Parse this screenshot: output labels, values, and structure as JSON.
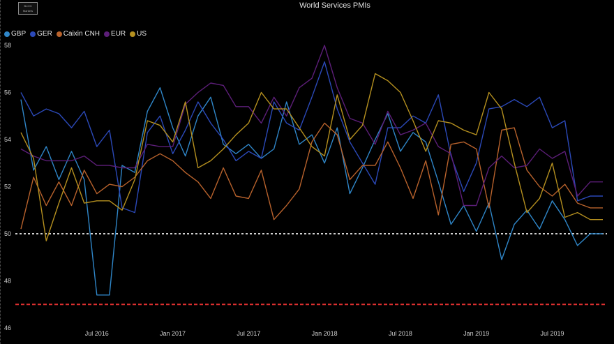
{
  "header": {
    "title": "World Services PMIs"
  },
  "logo": {
    "line1": "BLOG",
    "line2": "Markets"
  },
  "colors": {
    "background": "#000000",
    "ref50": "#d0d0d0",
    "ref47": "#e03030"
  },
  "legend": [
    {
      "label": "GBP",
      "color": "#2f86c8"
    },
    {
      "label": "GER",
      "color": "#2b49b8"
    },
    {
      "label": "Caixin CNH",
      "color": "#b8622c"
    },
    {
      "label": "EUR",
      "color": "#5c1e78"
    },
    {
      "label": "US",
      "color": "#b5901f"
    }
  ],
  "chart_data": {
    "type": "line",
    "title": "World Services PMIs",
    "xlabel": "",
    "ylabel": "",
    "ylim": [
      46,
      58.8
    ],
    "yticks": [
      46,
      48,
      50,
      52,
      54,
      56,
      58
    ],
    "x": [
      "2016-01",
      "2016-02",
      "2016-03",
      "2016-04",
      "2016-05",
      "2016-06",
      "2016-07",
      "2016-08",
      "2016-09",
      "2016-10",
      "2016-11",
      "2016-12",
      "2017-01",
      "2017-02",
      "2017-03",
      "2017-04",
      "2017-05",
      "2017-06",
      "2017-07",
      "2017-08",
      "2017-09",
      "2017-10",
      "2017-11",
      "2017-12",
      "2018-01",
      "2018-02",
      "2018-03",
      "2018-04",
      "2018-05",
      "2018-06",
      "2018-07",
      "2018-08",
      "2018-09",
      "2018-10",
      "2018-11",
      "2018-12",
      "2019-01",
      "2019-02",
      "2019-03",
      "2019-04",
      "2019-05",
      "2019-06",
      "2019-07",
      "2019-08",
      "2019-09",
      "2019-10",
      "2019-11"
    ],
    "xticks": [
      {
        "label": "Jul 2016",
        "at": "2016-07"
      },
      {
        "label": "Jan 2017",
        "at": "2017-01"
      },
      {
        "label": "Jul 2017",
        "at": "2017-07"
      },
      {
        "label": "Jan 2018",
        "at": "2018-01"
      },
      {
        "label": "Jul 2018",
        "at": "2018-07"
      },
      {
        "label": "Jan 2019",
        "at": "2019-01"
      },
      {
        "label": "Jul 2019",
        "at": "2019-07"
      }
    ],
    "reference_lines": [
      {
        "y": 50,
        "style": "dotted",
        "color": "#d0d0d0"
      },
      {
        "y": 47,
        "style": "dashed",
        "color": "#e03030"
      }
    ],
    "series": [
      {
        "name": "GBP",
        "color": "#2f86c8",
        "values": [
          55.7,
          52.7,
          53.7,
          52.3,
          53.5,
          52.3,
          47.4,
          47.4,
          52.9,
          52.6,
          55.2,
          56.2,
          54.5,
          53.3,
          55.0,
          55.8,
          53.8,
          53.4,
          53.8,
          53.2,
          53.6,
          55.6,
          53.8,
          54.2,
          53.0,
          54.5,
          51.7,
          52.8,
          54.0,
          55.1,
          53.5,
          54.3,
          53.9,
          52.2,
          50.4,
          51.2,
          50.1,
          51.3,
          48.9,
          50.4,
          51.0,
          50.2,
          51.4,
          50.6,
          49.5,
          50.0,
          50.0
        ]
      },
      {
        "name": "GER",
        "color": "#2b49b8",
        "values": [
          56.0,
          55.0,
          55.3,
          55.1,
          54.5,
          55.2,
          53.7,
          54.4,
          51.1,
          50.9,
          54.3,
          55.0,
          53.4,
          54.4,
          55.6,
          54.7,
          54.0,
          53.1,
          53.5,
          53.2,
          55.6,
          54.7,
          54.4,
          55.8,
          57.3,
          55.3,
          53.9,
          53.0,
          52.1,
          54.5,
          54.5,
          55.0,
          54.7,
          55.9,
          53.3,
          51.8,
          53.0,
          55.3,
          55.4,
          55.7,
          55.4,
          55.8,
          54.5,
          54.8,
          51.4,
          51.6,
          51.6
        ]
      },
      {
        "name": "Caixin CNH",
        "color": "#b8622c",
        "values": [
          50.2,
          52.4,
          51.2,
          52.2,
          51.2,
          52.7,
          51.7,
          52.1,
          52.0,
          52.4,
          53.1,
          53.4,
          53.1,
          52.6,
          52.2,
          51.5,
          52.8,
          51.6,
          51.5,
          52.7,
          50.6,
          51.2,
          51.9,
          53.9,
          54.7,
          54.2,
          52.3,
          52.9,
          52.9,
          53.9,
          52.8,
          51.5,
          53.1,
          50.8,
          53.8,
          53.9,
          53.6,
          51.1,
          54.4,
          54.5,
          52.7,
          52.0,
          51.6,
          52.1,
          51.3,
          51.1,
          51.1
        ]
      },
      {
        "name": "EUR",
        "color": "#5c1e78",
        "values": [
          53.6,
          53.3,
          53.1,
          53.1,
          53.1,
          53.3,
          52.9,
          52.9,
          52.8,
          52.8,
          53.8,
          53.7,
          53.7,
          55.5,
          56.0,
          56.4,
          56.3,
          55.4,
          55.4,
          54.7,
          55.8,
          55.0,
          56.2,
          56.6,
          58.0,
          56.2,
          54.9,
          54.7,
          53.8,
          55.2,
          54.2,
          54.4,
          54.7,
          53.7,
          53.4,
          51.2,
          51.2,
          52.8,
          53.3,
          52.8,
          52.9,
          53.6,
          53.2,
          53.5,
          51.6,
          52.2,
          52.2
        ]
      },
      {
        "name": "US",
        "color": "#b5901f",
        "values": [
          54.3,
          53.2,
          49.7,
          51.3,
          52.8,
          51.3,
          51.4,
          51.4,
          51.0,
          52.3,
          54.8,
          54.6,
          53.9,
          55.6,
          52.8,
          53.1,
          53.6,
          54.2,
          54.7,
          56.0,
          55.3,
          55.3,
          54.5,
          53.7,
          53.3,
          55.9,
          54.0,
          54.6,
          56.8,
          56.5,
          56.0,
          54.8,
          53.5,
          54.8,
          54.7,
          54.4,
          54.2,
          56.0,
          55.3,
          53.0,
          50.9,
          51.5,
          53.0,
          50.7,
          50.9,
          50.6,
          50.6
        ]
      }
    ]
  }
}
